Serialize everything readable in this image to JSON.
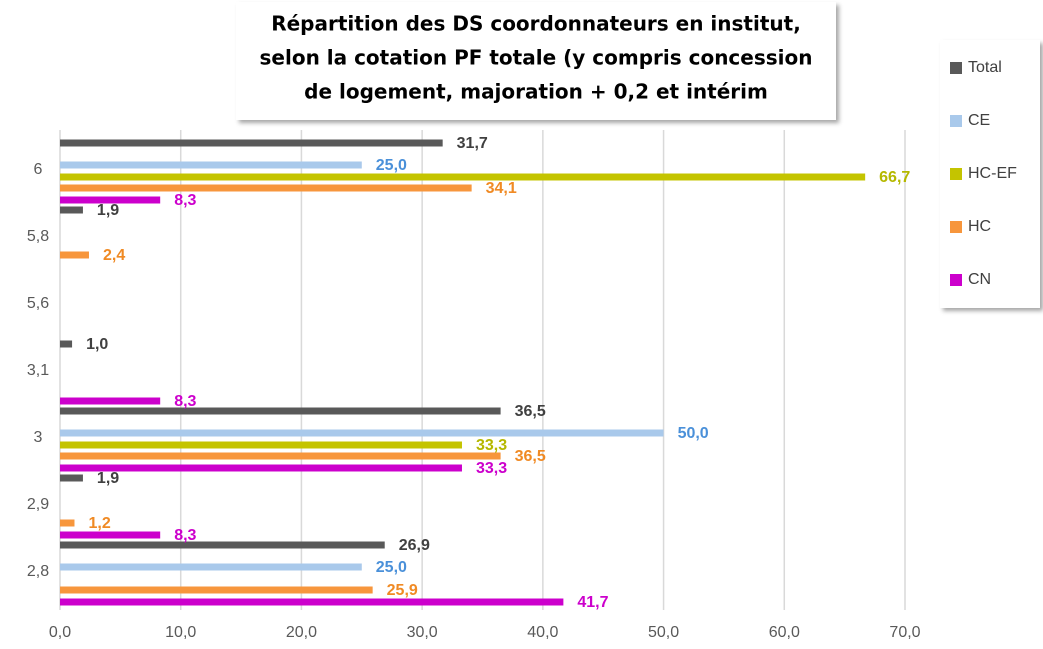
{
  "chart_data": {
    "type": "hbar",
    "title": [
      "Répartition des DS coordonnateurs en institut,",
      "selon la cotation PF totale (y compris concession",
      "de logement, majoration + 0,2 et intérim"
    ],
    "categories": [
      "6",
      "5,8",
      "5,6",
      "3,1",
      "3",
      "2,9",
      "2,8"
    ],
    "series": [
      {
        "name": "Total",
        "color": "#595959",
        "label_color": "#404040",
        "values": [
          31.7,
          1.9,
          null,
          1.0,
          36.5,
          1.9,
          26.9
        ],
        "value_labels": [
          "31,7",
          "1,9",
          null,
          "1,0",
          "36,5",
          "1,9",
          "26,9"
        ]
      },
      {
        "name": "CE",
        "color": "#a9c9eb",
        "label_color": "#4a90d9",
        "values": [
          25.0,
          null,
          null,
          null,
          50.0,
          null,
          25.0
        ],
        "value_labels": [
          "25,0",
          null,
          null,
          null,
          "50,0",
          null,
          "25,0"
        ]
      },
      {
        "name": "HC-EF",
        "color": "#c4c400",
        "label_color": "#b5b800",
        "values": [
          66.7,
          null,
          null,
          null,
          33.3,
          null,
          null
        ],
        "value_labels": [
          "66,7",
          null,
          null,
          null,
          "33,3",
          null,
          null
        ]
      },
      {
        "name": "HC",
        "color": "#f7963c",
        "label_color": "#f08a24",
        "values": [
          34.1,
          2.4,
          null,
          null,
          36.5,
          1.2,
          25.9
        ],
        "value_labels": [
          "34,1",
          "2,4",
          null,
          null,
          "36,5",
          "1,2",
          "25,9"
        ]
      },
      {
        "name": "CN",
        "color": "#cc00cc",
        "label_color": "#cc00cc",
        "values": [
          8.3,
          null,
          null,
          8.3,
          33.3,
          8.3,
          41.7
        ],
        "value_labels": [
          "8,3",
          null,
          null,
          "8,3",
          "33,3",
          "8,3",
          "41,7"
        ]
      }
    ],
    "xlim": [
      0,
      70
    ],
    "xticks": [
      {
        "value": 0,
        "label": "0,0"
      },
      {
        "value": 10,
        "label": "10,0"
      },
      {
        "value": 20,
        "label": "20,0"
      },
      {
        "value": 30,
        "label": "30,0"
      },
      {
        "value": 40,
        "label": "40,0"
      },
      {
        "value": 50,
        "label": "50,0"
      },
      {
        "value": 60,
        "label": "60,0"
      },
      {
        "value": 70,
        "label": "70,0"
      }
    ],
    "grid": true,
    "legend": "right"
  }
}
